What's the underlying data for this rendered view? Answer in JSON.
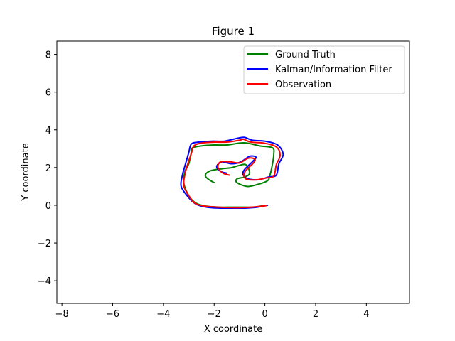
{
  "chart_data": {
    "type": "line",
    "title": "Figure 1",
    "xlabel": "X coordinate",
    "ylabel": "Y coordinate",
    "xlim": [
      -8.2,
      5.7
    ],
    "ylim": [
      -5.2,
      8.7
    ],
    "xticks": [
      -8,
      -6,
      -4,
      -2,
      0,
      2,
      4
    ],
    "yticks": [
      -4,
      -2,
      0,
      2,
      4,
      6,
      8
    ],
    "xtick_labels": [
      "−8",
      "−6",
      "−4",
      "−2",
      "0",
      "2",
      "4"
    ],
    "ytick_labels": [
      "−4",
      "−2",
      "0",
      "2",
      "4",
      "6",
      "8"
    ],
    "grid": false,
    "legend_position": "top-right",
    "series": [
      {
        "name": "Ground Truth",
        "color": "#008000",
        "x": [
          0.0,
          -0.4,
          -0.8,
          -1.3,
          -1.8,
          -2.3,
          -2.7,
          -3.0,
          -3.2,
          -3.15,
          -3.0,
          -2.9,
          -2.85,
          -2.5,
          -2.0,
          -1.5,
          -1.0,
          -0.7,
          -0.2,
          0.3,
          0.35,
          0.3,
          0.2,
          0.1,
          -0.3,
          -0.7,
          -1.1,
          -1.1,
          -0.8,
          -0.6,
          -0.75,
          -1.05,
          -1.3,
          -1.6,
          -1.9,
          -2.2,
          -2.35,
          -2.25,
          -2.0
        ],
        "y": [
          0.0,
          -0.1,
          -0.1,
          -0.1,
          -0.1,
          -0.05,
          0.1,
          0.5,
          1.2,
          1.8,
          2.2,
          2.8,
          3.05,
          3.15,
          3.2,
          3.2,
          3.3,
          3.3,
          3.15,
          3.05,
          2.7,
          2.2,
          1.6,
          1.3,
          1.1,
          1.0,
          1.2,
          1.4,
          1.5,
          1.7,
          2.15,
          2.1,
          2.0,
          1.95,
          1.9,
          1.8,
          1.6,
          1.4,
          1.2
        ]
      },
      {
        "name": "Kalman/Information Filter",
        "color": "#0000ff",
        "x": [
          0.1,
          -0.3,
          -0.8,
          -1.3,
          -1.8,
          -2.3,
          -2.7,
          -3.0,
          -3.3,
          -3.25,
          -3.15,
          -3.0,
          -2.9,
          -2.6,
          -2.1,
          -1.6,
          -1.1,
          -0.8,
          -0.5,
          0.0,
          0.5,
          0.72,
          0.55,
          0.45,
          0.15,
          -0.3,
          -0.75,
          -0.85,
          -0.5,
          -0.35,
          -0.6,
          -0.95,
          -1.3,
          -1.7,
          -1.9,
          -1.75,
          -1.5
        ],
        "y": [
          0.0,
          -0.1,
          -0.15,
          -0.15,
          -0.15,
          -0.1,
          0.05,
          0.4,
          1.0,
          1.6,
          2.1,
          2.8,
          3.25,
          3.35,
          3.4,
          3.4,
          3.55,
          3.6,
          3.45,
          3.4,
          3.2,
          2.7,
          2.2,
          1.6,
          1.5,
          1.35,
          1.45,
          1.8,
          2.3,
          2.55,
          2.6,
          2.3,
          2.2,
          2.3,
          2.05,
          1.8,
          1.7
        ]
      },
      {
        "name": "Observation",
        "color": "#ff0000",
        "x": [
          0.05,
          -0.35,
          -0.85,
          -1.35,
          -1.85,
          -2.35,
          -2.75,
          -3.0,
          -3.2,
          -3.15,
          -3.05,
          -2.9,
          -2.8,
          -2.5,
          -2.0,
          -1.5,
          -1.0,
          -0.85,
          -0.55,
          -0.05,
          0.45,
          0.6,
          0.45,
          0.35,
          0.05,
          -0.35,
          -0.75,
          -0.8,
          -0.45,
          -0.4,
          -0.65,
          -1.0,
          -1.35,
          -1.75,
          -1.85,
          -1.65,
          -1.4
        ],
        "y": [
          -0.02,
          -0.08,
          -0.12,
          -0.12,
          -0.1,
          -0.05,
          0.1,
          0.5,
          1.05,
          1.65,
          2.15,
          2.75,
          3.15,
          3.3,
          3.35,
          3.35,
          3.45,
          3.5,
          3.35,
          3.3,
          3.1,
          2.65,
          2.15,
          1.55,
          1.45,
          1.35,
          1.4,
          1.75,
          2.25,
          2.45,
          2.5,
          2.25,
          2.3,
          2.3,
          2.0,
          1.7,
          1.6
        ]
      }
    ]
  }
}
